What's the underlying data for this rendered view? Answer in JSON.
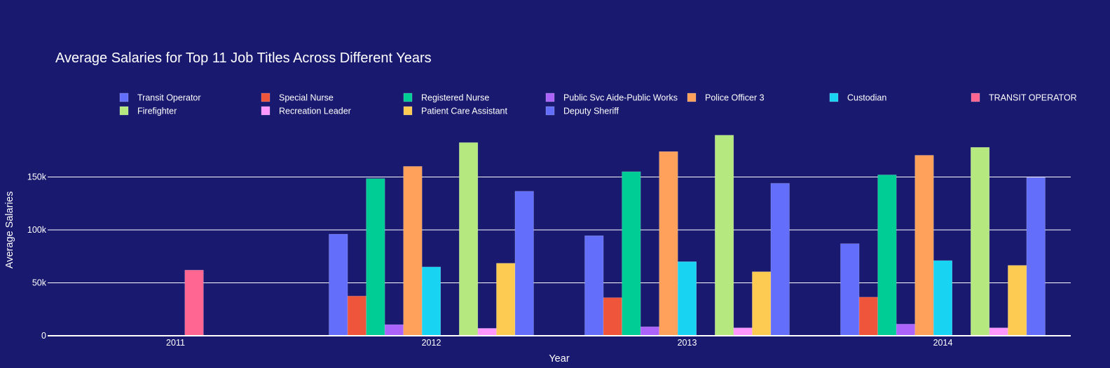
{
  "chart_data": {
    "type": "bar",
    "title": "Average Salaries for Top 11 Job Titles Across Different Years",
    "xlabel": "Year",
    "ylabel": "Average Salaries",
    "categories": [
      "2011",
      "2012",
      "2013",
      "2014"
    ],
    "ylim": [
      0,
      198000
    ],
    "yticks": [
      {
        "value": 0,
        "label": "0"
      },
      {
        "value": 50000,
        "label": "50k"
      },
      {
        "value": 100000,
        "label": "100k"
      },
      {
        "value": 150000,
        "label": "150k"
      }
    ],
    "grid": true,
    "legend_position": "top",
    "series": [
      {
        "name": "Transit Operator",
        "color": "#636efa",
        "values": [
          null,
          96000,
          94500,
          87000
        ]
      },
      {
        "name": "Special Nurse",
        "color": "#ef553b",
        "values": [
          null,
          37500,
          36000,
          36500
        ]
      },
      {
        "name": "Registered Nurse",
        "color": "#00cc96",
        "values": [
          null,
          148500,
          155000,
          152000
        ]
      },
      {
        "name": "Public Svc Aide-Public Works",
        "color": "#ab63fa",
        "values": [
          null,
          10500,
          8500,
          11000
        ]
      },
      {
        "name": "Police Officer 3",
        "color": "#ffa15a",
        "values": [
          null,
          160000,
          174000,
          170500
        ]
      },
      {
        "name": "Custodian",
        "color": "#19d3f3",
        "values": [
          null,
          65000,
          70000,
          71000
        ]
      },
      {
        "name": "TRANSIT OPERATOR",
        "color": "#ff6692",
        "values": [
          62000,
          null,
          null,
          null
        ]
      },
      {
        "name": "Firefighter",
        "color": "#b6e880",
        "values": [
          null,
          182500,
          189500,
          178000
        ]
      },
      {
        "name": "Recreation Leader",
        "color": "#ff97ff",
        "values": [
          null,
          7000,
          7500,
          7500
        ]
      },
      {
        "name": "Patient Care Assistant",
        "color": "#fecb52",
        "values": [
          null,
          68500,
          60500,
          66500
        ]
      },
      {
        "name": "Deputy Sheriff",
        "color": "#636efa",
        "values": [
          null,
          136500,
          144000,
          149500
        ]
      }
    ]
  }
}
